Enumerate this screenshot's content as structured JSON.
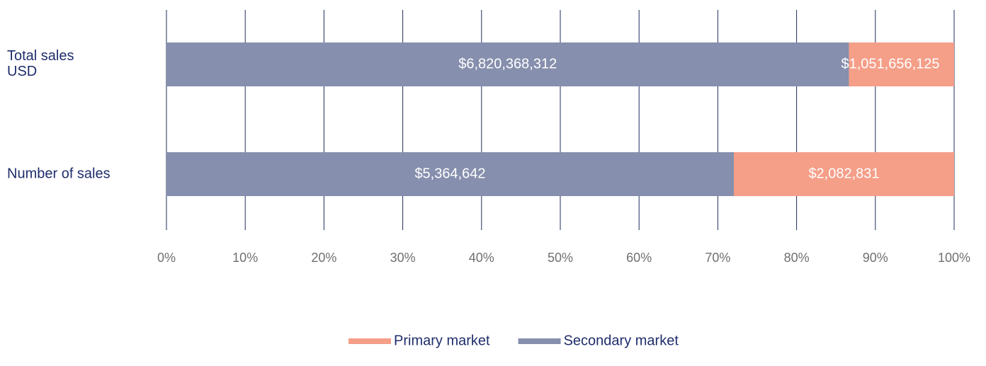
{
  "chart_data": {
    "type": "bar",
    "orientation": "horizontal",
    "stacked": "percent",
    "categories": [
      "Total sales\nUSD",
      "Number of sales"
    ],
    "series": [
      {
        "name": "Secondary market",
        "color": "#868fad",
        "values": [
          6820368312,
          5364642
        ],
        "value_labels": [
          "$6,820,368,312",
          "$5,364,642"
        ]
      },
      {
        "name": "Primary market",
        "color": "#f59e88",
        "values": [
          1051656125,
          2082831
        ],
        "value_labels": [
          "$1,051,656,125",
          "$2,082,831"
        ]
      }
    ],
    "xlim": [
      0,
      100
    ],
    "xticks": [
      {
        "value": 0,
        "label": "0%"
      },
      {
        "value": 10,
        "label": "10%"
      },
      {
        "value": 20,
        "label": "20%"
      },
      {
        "value": 30,
        "label": "30%"
      },
      {
        "value": 40,
        "label": "40%"
      },
      {
        "value": 50,
        "label": "50%"
      },
      {
        "value": 60,
        "label": "60%"
      },
      {
        "value": 70,
        "label": "70%"
      },
      {
        "value": 80,
        "label": "80%"
      },
      {
        "value": 90,
        "label": "90%"
      },
      {
        "value": 100,
        "label": "100%"
      }
    ],
    "grid": true,
    "legend": "bottom"
  }
}
